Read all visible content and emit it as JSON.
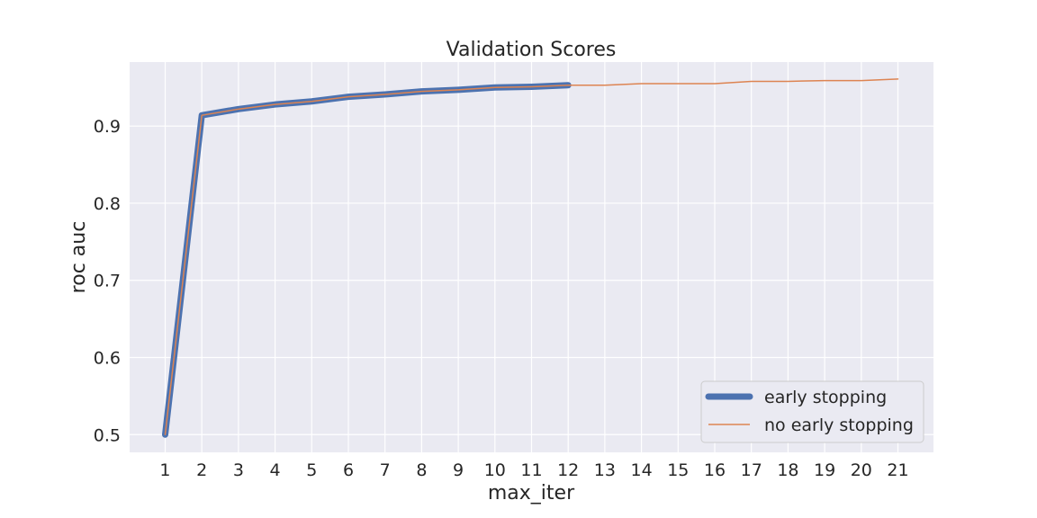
{
  "chart_data": {
    "type": "line",
    "title": "Validation Scores",
    "xlabel": "max_iter",
    "ylabel": "roc auc",
    "x": [
      1,
      2,
      3,
      4,
      5,
      6,
      7,
      8,
      9,
      10,
      11,
      12,
      13,
      14,
      15,
      16,
      17,
      18,
      19,
      20,
      21
    ],
    "xlim": [
      0.03,
      21.97
    ],
    "ylim": [
      0.477,
      0.983
    ],
    "yticks": [
      0.5,
      0.6,
      0.7,
      0.8,
      0.9
    ],
    "ytick_labels": [
      "0.5",
      "0.6",
      "0.7",
      "0.8",
      "0.9"
    ],
    "xtick_labels": [
      "1",
      "2",
      "3",
      "4",
      "5",
      "6",
      "7",
      "8",
      "9",
      "10",
      "11",
      "12",
      "13",
      "14",
      "15",
      "16",
      "17",
      "18",
      "19",
      "20",
      "21"
    ],
    "grid": true,
    "legend_position": "lower-right",
    "series": [
      {
        "name": "early stopping",
        "color": "#4c72b0",
        "x": [
          1,
          2,
          3,
          4,
          5,
          6,
          7,
          8,
          9,
          10,
          11,
          12
        ],
        "values": [
          0.5,
          0.914,
          0.922,
          0.928,
          0.932,
          0.938,
          0.941,
          0.945,
          0.947,
          0.95,
          0.951,
          0.953
        ]
      },
      {
        "name": "no early stopping",
        "color": "#dd8452",
        "x": [
          1,
          2,
          3,
          4,
          5,
          6,
          7,
          8,
          9,
          10,
          11,
          12,
          13,
          14,
          15,
          16,
          17,
          18,
          19,
          20,
          21
        ],
        "values": [
          0.5,
          0.914,
          0.922,
          0.928,
          0.932,
          0.938,
          0.941,
          0.945,
          0.947,
          0.95,
          0.951,
          0.953,
          0.953,
          0.955,
          0.955,
          0.955,
          0.958,
          0.958,
          0.959,
          0.959,
          0.961
        ]
      }
    ]
  }
}
